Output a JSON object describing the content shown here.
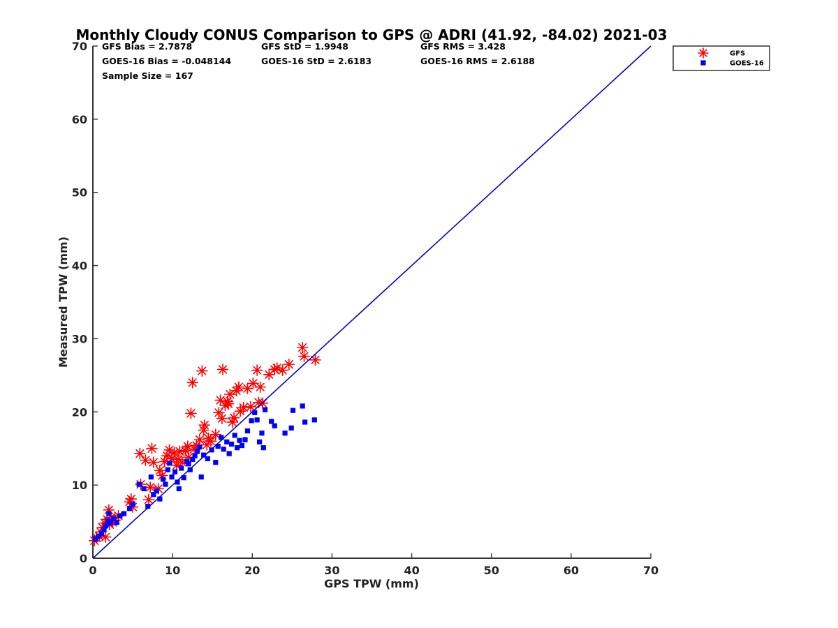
{
  "chart_data": {
    "type": "scatter",
    "title": "Monthly Cloudy CONUS Comparison to GPS @ ADRI (41.92, -84.02) 2021-03",
    "xlabel": "GPS TPW (mm)",
    "ylabel": "Measured TPW (mm)",
    "xlim": [
      0,
      70
    ],
    "ylim": [
      0,
      70
    ],
    "xticks": [
      "0",
      "10",
      "20",
      "30",
      "40",
      "50",
      "60",
      "70"
    ],
    "yticks": [
      "0",
      "10",
      "20",
      "30",
      "40",
      "50",
      "60",
      "70"
    ],
    "grid": false,
    "legend_position": "outside-top-right",
    "stats": [
      "GFS Bias = 2.7878",
      "GFS StD = 1.9948",
      "GFS RMS = 3.428",
      "GOES-16 Bias = -0.048144",
      "GOES-16 StD = 2.6183",
      "GOES-16 RMS = 2.6188",
      "Sample Size = 167"
    ],
    "reference_line": {
      "x": [
        0,
        70
      ],
      "y": [
        0,
        70
      ],
      "color": "#0000cc"
    },
    "series": [
      {
        "name": "GFS",
        "marker": "asterisk",
        "color": "#ff0000",
        "points": [
          [
            0.2,
            2.4
          ],
          [
            0.5,
            2.8
          ],
          [
            0.8,
            3.0
          ],
          [
            1.0,
            3.6
          ],
          [
            1.2,
            4.2
          ],
          [
            1.5,
            4.8
          ],
          [
            1.6,
            2.9
          ],
          [
            1.8,
            5.3
          ],
          [
            2.0,
            6.6
          ],
          [
            2.1,
            4.6
          ],
          [
            2.3,
            5.6
          ],
          [
            2.5,
            4.9
          ],
          [
            2.8,
            5.2
          ],
          [
            3.2,
            5.8
          ],
          [
            4.6,
            7.7
          ],
          [
            4.8,
            8.1
          ],
          [
            5.0,
            7.0
          ],
          [
            5.9,
            14.3
          ],
          [
            6.0,
            10.1
          ],
          [
            6.6,
            13.4
          ],
          [
            7.0,
            8.0
          ],
          [
            7.2,
            9.7
          ],
          [
            7.4,
            15.0
          ],
          [
            7.6,
            13.1
          ],
          [
            8.2,
            9.5
          ],
          [
            8.4,
            12.0
          ],
          [
            8.7,
            11.3
          ],
          [
            9.0,
            13.2
          ],
          [
            9.3,
            14.0
          ],
          [
            9.6,
            14.8
          ],
          [
            9.9,
            13.6
          ],
          [
            10.2,
            14.4
          ],
          [
            10.5,
            12.7
          ],
          [
            10.9,
            14.6
          ],
          [
            11.2,
            13.1
          ],
          [
            11.6,
            14.7
          ],
          [
            12.0,
            13.8
          ],
          [
            12.3,
            19.8
          ],
          [
            12.5,
            24.0
          ],
          [
            12.7,
            14.9
          ],
          [
            13.0,
            15.4
          ],
          [
            13.4,
            16.2
          ],
          [
            13.7,
            25.6
          ],
          [
            13.9,
            17.5
          ],
          [
            14.0,
            18.2
          ],
          [
            14.3,
            15.5
          ],
          [
            14.8,
            16.0
          ],
          [
            15.4,
            16.9
          ],
          [
            15.8,
            19.9
          ],
          [
            16.0,
            21.6
          ],
          [
            16.3,
            25.8
          ],
          [
            16.6,
            20.9
          ],
          [
            16.9,
            21.4
          ],
          [
            17.2,
            22.4
          ],
          [
            17.5,
            18.6
          ],
          [
            17.7,
            19.2
          ],
          [
            18.0,
            22.9
          ],
          [
            18.3,
            23.4
          ],
          [
            18.5,
            20.1
          ],
          [
            18.9,
            20.6
          ],
          [
            19.4,
            23.2
          ],
          [
            20.1,
            23.9
          ],
          [
            20.6,
            25.7
          ],
          [
            20.8,
            21.3
          ],
          [
            21.3,
            21.2
          ],
          [
            22.1,
            25.1
          ],
          [
            22.8,
            25.8
          ],
          [
            23.1,
            26.0
          ],
          [
            23.8,
            25.7
          ],
          [
            24.6,
            26.5
          ],
          [
            26.3,
            28.8
          ],
          [
            26.5,
            27.6
          ],
          [
            27.9,
            27.1
          ],
          [
            21.0,
            23.4
          ],
          [
            17.0,
            21.1
          ],
          [
            14.5,
            16.4
          ],
          [
            19.8,
            20.7
          ],
          [
            10.7,
            13.5
          ],
          [
            11.9,
            15.3
          ],
          [
            16.2,
            19.1
          ]
        ]
      },
      {
        "name": "GOES-16",
        "marker": "square",
        "color": "#0000ff",
        "points": [
          [
            0.3,
            2.6
          ],
          [
            0.7,
            3.0
          ],
          [
            1.1,
            3.4
          ],
          [
            1.4,
            3.9
          ],
          [
            1.6,
            4.4
          ],
          [
            1.9,
            5.1
          ],
          [
            2.0,
            6.1
          ],
          [
            2.2,
            4.8
          ],
          [
            2.6,
            5.4
          ],
          [
            3.0,
            4.9
          ],
          [
            3.4,
            5.8
          ],
          [
            3.9,
            6.1
          ],
          [
            4.6,
            6.8
          ],
          [
            5.0,
            7.4
          ],
          [
            5.8,
            10.1
          ],
          [
            6.4,
            9.5
          ],
          [
            6.9,
            7.1
          ],
          [
            7.3,
            11.1
          ],
          [
            7.6,
            8.7
          ],
          [
            8.0,
            9.2
          ],
          [
            8.4,
            8.1
          ],
          [
            8.8,
            10.8
          ],
          [
            9.1,
            10.1
          ],
          [
            9.4,
            12.1
          ],
          [
            9.6,
            13.0
          ],
          [
            9.9,
            11.1
          ],
          [
            10.3,
            11.8
          ],
          [
            10.6,
            10.4
          ],
          [
            10.8,
            9.5
          ],
          [
            11.1,
            12.3
          ],
          [
            11.4,
            11.0
          ],
          [
            11.8,
            13.2
          ],
          [
            12.2,
            12.1
          ],
          [
            12.5,
            13.5
          ],
          [
            12.8,
            14.0
          ],
          [
            13.1,
            14.6
          ],
          [
            13.4,
            15.2
          ],
          [
            13.6,
            11.1
          ],
          [
            13.9,
            14.1
          ],
          [
            14.4,
            13.6
          ],
          [
            14.9,
            14.8
          ],
          [
            15.4,
            13.1
          ],
          [
            15.7,
            15.3
          ],
          [
            16.1,
            16.5
          ],
          [
            16.4,
            14.9
          ],
          [
            16.8,
            15.9
          ],
          [
            17.1,
            14.3
          ],
          [
            17.4,
            15.6
          ],
          [
            17.8,
            16.8
          ],
          [
            18.1,
            15.1
          ],
          [
            18.4,
            16.1
          ],
          [
            18.7,
            15.4
          ],
          [
            19.1,
            16.2
          ],
          [
            19.4,
            17.4
          ],
          [
            19.9,
            18.8
          ],
          [
            20.3,
            19.9
          ],
          [
            20.6,
            18.9
          ],
          [
            20.9,
            15.9
          ],
          [
            21.2,
            17.1
          ],
          [
            21.4,
            15.1
          ],
          [
            21.6,
            20.3
          ],
          [
            22.4,
            18.7
          ],
          [
            22.8,
            18.1
          ],
          [
            24.1,
            17.1
          ],
          [
            24.9,
            17.8
          ],
          [
            25.1,
            20.2
          ],
          [
            26.3,
            20.8
          ],
          [
            26.6,
            18.6
          ],
          [
            27.8,
            18.9
          ],
          [
            12.0,
            12.9
          ]
        ]
      }
    ]
  }
}
